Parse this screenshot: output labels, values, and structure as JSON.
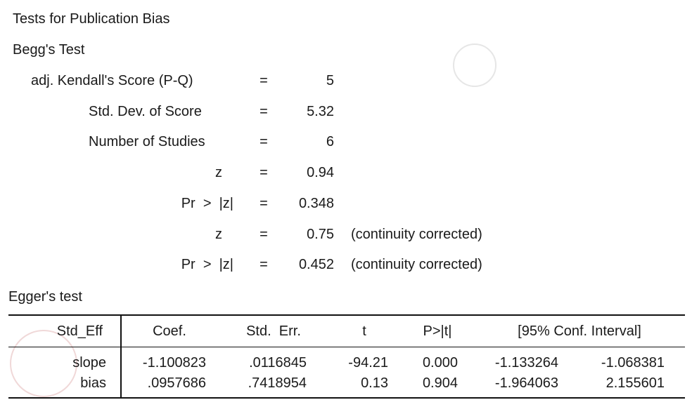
{
  "title": "Tests for Publication Bias",
  "begg": {
    "title": "Begg's Test",
    "rows": [
      {
        "label": "adj. Kendall's Score (P-Q)",
        "eq": "=",
        "value": "5"
      },
      {
        "label": "Std. Dev. of Score",
        "eq": "=",
        "value": "5.32"
      },
      {
        "label": "Number of Studies",
        "eq": "=",
        "value": "6"
      },
      {
        "label": "z",
        "eq": "=",
        "value": "0.94"
      },
      {
        "label": "Pr  >  |z|",
        "eq": "=",
        "value": "0.348"
      },
      {
        "label": "z",
        "eq": "=",
        "value": "0.75",
        "note": "(continuity corrected)"
      },
      {
        "label": "Pr  >  |z|",
        "eq": "=",
        "value": "0.452",
        "note": "(continuity corrected)"
      }
    ]
  },
  "egger": {
    "title": "Egger's test",
    "table": {
      "header": [
        "Std_Eff",
        "Coef.",
        "Std.  Err.",
        "t",
        "P>|t|",
        "[95% Conf. Interval]"
      ],
      "rows": [
        [
          "slope",
          "-1.100823",
          ".0116845",
          "-94.21",
          "0.000",
          "-1.133264",
          "-1.068381"
        ],
        [
          "bias",
          ".0957686",
          ".7418954",
          "0.13",
          "0.904",
          "-1.964063",
          "2.155601"
        ]
      ]
    }
  }
}
